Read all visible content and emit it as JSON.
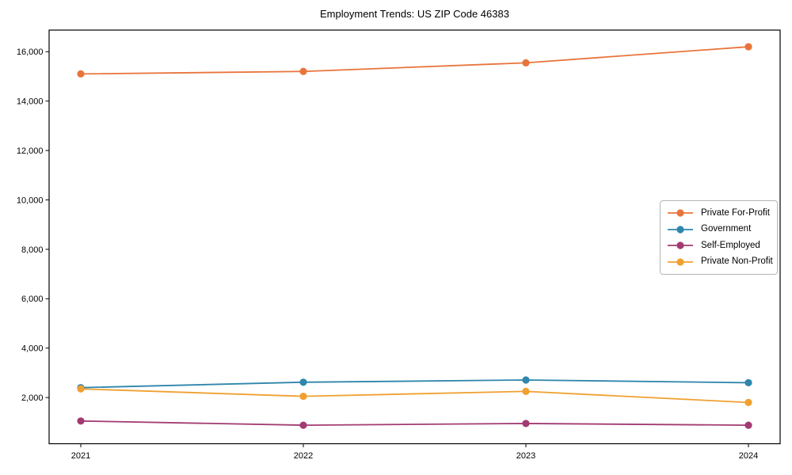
{
  "title": "Employment Trends: US ZIP Code 46383",
  "chart_data": {
    "type": "line",
    "title": "Employment Trends: US ZIP Code 46383",
    "xlabel": "",
    "ylabel": "",
    "x": [
      "2021",
      "2022",
      "2023",
      "2024"
    ],
    "series": [
      {
        "name": "Private For-Profit",
        "color": "#E8743B",
        "values": [
          15100,
          15200,
          15550,
          16200
        ]
      },
      {
        "name": "Government",
        "color": "#2E86AB",
        "values": [
          2400,
          2620,
          2710,
          2600
        ]
      },
      {
        "name": "Self-Employed",
        "color": "#A23B72",
        "values": [
          1050,
          880,
          950,
          880
        ]
      },
      {
        "name": "Private Non-Profit",
        "color": "#F0A030",
        "values": [
          2350,
          2050,
          2250,
          1800
        ]
      }
    ],
    "ylim": [
      130,
      16875
    ],
    "yticks": [
      2000,
      4000,
      6000,
      8000,
      10000,
      12000,
      14000,
      16000
    ],
    "ytick_labels": [
      "2,000",
      "4,000",
      "6,000",
      "8,000",
      "10,000",
      "12,000",
      "14,000",
      "16,000"
    ],
    "grid": false,
    "legend_position": "center right",
    "marker": "circle"
  },
  "axes": {
    "spine_color": "#000000",
    "tick_color": "#000000"
  }
}
